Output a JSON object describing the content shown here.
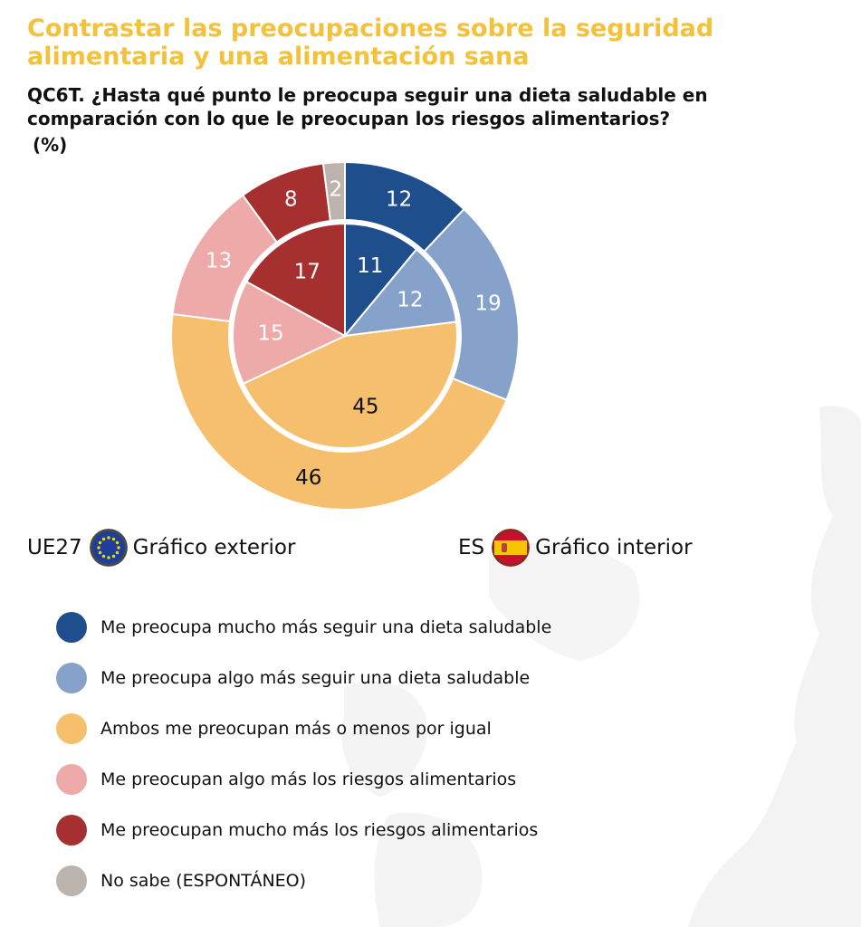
{
  "header": {
    "title": "Contrastar las preocupaciones sobre la seguridad alimentaria y una alimentación sana",
    "question": "QC6T. ¿Hasta qué punto le preocupa seguir una dieta saludable en comparación con lo que le preocupan los riesgos alimentarios?",
    "unit": "(%)"
  },
  "key": {
    "outer": {
      "country": "UE27",
      "label": "Gráfico exterior",
      "icon": "eu-flag-icon"
    },
    "inner": {
      "country": "ES",
      "label": "Gráfico interior",
      "icon": "spain-flag-icon"
    }
  },
  "chart_data": {
    "type": "pie",
    "variant": "nested-donut",
    "categories": [
      "Me preocupa mucho más seguir una dieta saludable",
      "Me preocupa algo más seguir una dieta saludable",
      "Ambos me preocupan más o menos por igual",
      "Me preocupan algo más los riesgos alimentarios",
      "Me preocupan mucho más los riesgos alimentarios",
      "No sabe (ESPONTÁNEO)"
    ],
    "colors": [
      "#1f4e8c",
      "#86a2cb",
      "#f5bf6e",
      "#eeaaa9",
      "#a5302f",
      "#bcb3ad"
    ],
    "label_colors": [
      "#ffffff",
      "#ffffff",
      "#111111",
      "#ffffff",
      "#ffffff",
      "#ffffff"
    ],
    "series": [
      {
        "ring": "outer",
        "values": [
          12,
          19,
          46,
          13,
          8,
          2
        ]
      },
      {
        "ring": "inner",
        "values": [
          11,
          12,
          45,
          15,
          17,
          0
        ]
      }
    ],
    "legend": "bottom-left"
  }
}
